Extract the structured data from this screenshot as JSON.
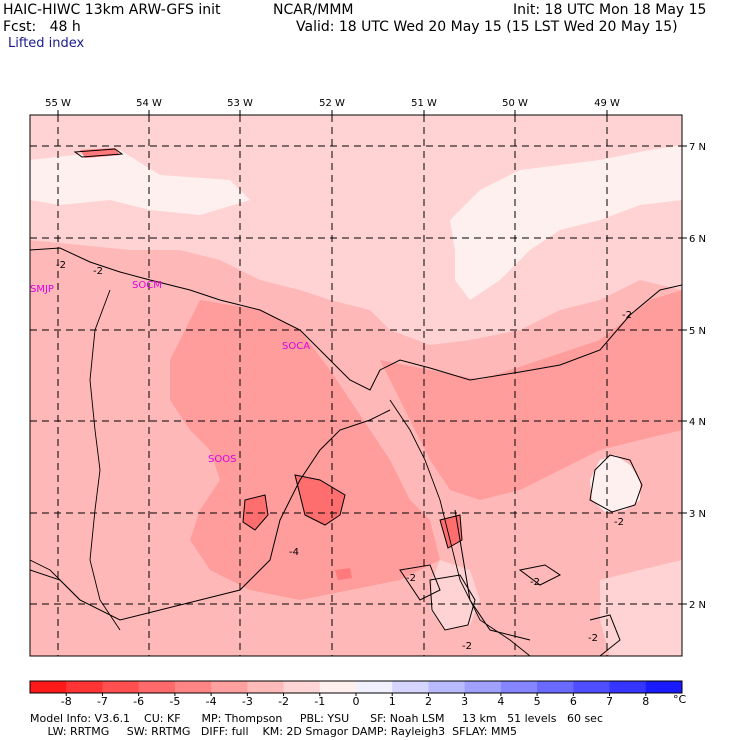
{
  "header": {
    "model_title": "HAIC-HIWC 13km ARW-GFS init",
    "center": "NCAR/MMM",
    "init": "Init: 18 UTC Mon 18 May 15",
    "fcst": "Fcst:   48 h",
    "valid": "Valid: 18 UTC Wed 20 May 15 (15 LST Wed 20 May 15)",
    "field": "Lifted index"
  },
  "map": {
    "lon_labels": [
      "55 W",
      "54 W",
      "53 W",
      "52 W",
      "51 W",
      "50 W",
      "49 W"
    ],
    "lat_labels": [
      "7 N",
      "6 N",
      "5 N",
      "4 N",
      "3 N",
      "2 N"
    ],
    "stations": [
      "SMJP",
      "SOCM",
      "SOCA",
      "SOOS"
    ],
    "contour_labels": [
      "-2",
      "-2",
      "-2",
      "-2",
      "-4",
      "-2",
      "-2",
      "-2",
      "-2",
      "-2"
    ]
  },
  "colorbar": {
    "ticks": [
      "-8",
      "-7",
      "-6",
      "-5",
      "-4",
      "-3",
      "-2",
      "-1",
      "0",
      "1",
      "2",
      "3",
      "4",
      "5",
      "6",
      "7",
      "8"
    ],
    "unit": "°C",
    "colors": [
      "#ff1a1a",
      "#ff3535",
      "#ff4f4f",
      "#ff6a6a",
      "#ff8585",
      "#ffa0a0",
      "#ffbaba",
      "#ffd5d5",
      "#fff0f0",
      "#f0f0ff",
      "#d5d5ff",
      "#baba ff",
      "#a0a0ff",
      "#8585ff",
      "#6a6aff",
      "#4f4fff",
      "#3535ff",
      "#1a1aff"
    ]
  },
  "footer": {
    "line1": "Model Info: V3.6.1    CU: KF      MP: Thompson     PBL: YSU      SF: Noah LSM     13 km   51 levels   60 sec",
    "line2": "     LW: RRTMG     SW: RRTMG   DIFF: full    KM: 2D Smagor DAMP: Rayleigh3  SFLAY: MM5"
  }
}
